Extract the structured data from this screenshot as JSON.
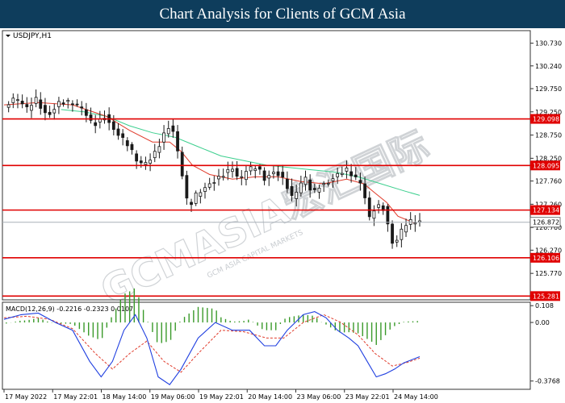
{
  "header": {
    "title": "Chart Analysis for Clients of GCM Asia"
  },
  "symbol_label": "USDJPY,H1",
  "watermark": {
    "main": "GCMASIA宏汇国际",
    "sub": "GCM ASIA CAPITAL MARKETS"
  },
  "colors": {
    "title_bg": "#0e3d5c",
    "support_resistance": "#e00000",
    "current_price_line": "#a8b0b8",
    "ma_fast": "#e03a2a",
    "ma_slow": "#3ccf8e",
    "macd_line": "#1f3fe0",
    "macd_signal": "#e03a2a",
    "macd_histogram": "#3a9a2a",
    "candle": "#1a1a1a"
  },
  "chart_data": [
    {
      "type": "candlestick",
      "symbol": "USDJPY",
      "timeframe": "H1",
      "ylim": [
        125.2,
        131.0
      ],
      "y_ticks": [
        "130.730",
        "130.240",
        "129.750",
        "129.250",
        "128.750",
        "128.250",
        "127.760",
        "127.260",
        "126.760",
        "126.270",
        "125.770"
      ],
      "x_ticks": [
        "17 May 2022",
        "17 May 22:01",
        "18 May 14:00",
        "19 May 06:00",
        "19 May 22:01",
        "20 May 14:00",
        "23 May 06:00",
        "23 May 22:01",
        "24 May 14:00"
      ],
      "levels": [
        {
          "label": "129.098",
          "value": 129.098
        },
        {
          "label": "128.095",
          "value": 128.095
        },
        {
          "label": "127.134",
          "value": 127.134
        },
        {
          "label": "126.106",
          "value": 126.106
        },
        {
          "label": "125.281",
          "value": 125.281
        }
      ],
      "current_price": {
        "label": "126.872",
        "value": 126.872
      },
      "close_path": [
        [
          0,
          129.35
        ],
        [
          10,
          129.5
        ],
        [
          20,
          129.3
        ],
        [
          28,
          129.55
        ],
        [
          38,
          129.2
        ],
        [
          48,
          129.45
        ],
        [
          58,
          129.4
        ],
        [
          68,
          129.3
        ],
        [
          78,
          129.0
        ],
        [
          88,
          129.2
        ],
        [
          98,
          128.8
        ],
        [
          108,
          128.5
        ],
        [
          118,
          128.1
        ],
        [
          126,
          128.2
        ],
        [
          134,
          128.5
        ],
        [
          140,
          128.8
        ],
        [
          146,
          129.0
        ],
        [
          150,
          128.6
        ],
        [
          155,
          128.0
        ],
        [
          158,
          127.5
        ],
        [
          162,
          127.1
        ],
        [
          166,
          127.4
        ],
        [
          172,
          127.55
        ],
        [
          180,
          127.75
        ],
        [
          190,
          127.9
        ],
        [
          200,
          128.0
        ],
        [
          206,
          127.7
        ],
        [
          212,
          127.95
        ],
        [
          222,
          128.1
        ],
        [
          228,
          127.85
        ],
        [
          235,
          128.0
        ],
        [
          242,
          127.9
        ],
        [
          248,
          127.6
        ],
        [
          253,
          127.3
        ],
        [
          258,
          127.6
        ],
        [
          264,
          127.8
        ],
        [
          270,
          127.5
        ],
        [
          276,
          127.7
        ],
        [
          282,
          127.75
        ],
        [
          292,
          127.9
        ],
        [
          300,
          127.95
        ],
        [
          306,
          127.8
        ],
        [
          312,
          127.7
        ],
        [
          316,
          127.4
        ],
        [
          320,
          127.0
        ],
        [
          326,
          127.3
        ],
        [
          333,
          127.2
        ],
        [
          338,
          126.6
        ],
        [
          341,
          126.35
        ],
        [
          345,
          126.5
        ],
        [
          350,
          126.75
        ],
        [
          357,
          126.85
        ],
        [
          364,
          126.87
        ]
      ],
      "ma_fast_path": [
        [
          0,
          129.4
        ],
        [
          30,
          129.45
        ],
        [
          60,
          129.4
        ],
        [
          90,
          129.15
        ],
        [
          110,
          128.85
        ],
        [
          130,
          128.6
        ],
        [
          145,
          128.6
        ],
        [
          155,
          128.4
        ],
        [
          165,
          128.1
        ],
        [
          180,
          127.9
        ],
        [
          200,
          127.8
        ],
        [
          220,
          127.85
        ],
        [
          240,
          127.85
        ],
        [
          260,
          127.75
        ],
        [
          280,
          127.7
        ],
        [
          300,
          127.8
        ],
        [
          315,
          127.7
        ],
        [
          325,
          127.5
        ],
        [
          335,
          127.3
        ],
        [
          345,
          127.0
        ],
        [
          360,
          126.85
        ]
      ],
      "ma_slow_path": [
        [
          50,
          129.3
        ],
        [
          70,
          129.25
        ],
        [
          90,
          129.15
        ],
        [
          110,
          128.95
        ],
        [
          130,
          128.8
        ],
        [
          150,
          128.7
        ],
        [
          170,
          128.5
        ],
        [
          190,
          128.3
        ],
        [
          210,
          128.2
        ],
        [
          230,
          128.1
        ],
        [
          250,
          128.05
        ],
        [
          270,
          128.0
        ],
        [
          290,
          127.95
        ],
        [
          310,
          127.85
        ],
        [
          330,
          127.7
        ],
        [
          350,
          127.55
        ],
        [
          364,
          127.45
        ]
      ]
    },
    {
      "type": "macd",
      "title": "MACD(12,26,9) -0.2216 -0.2323 0.0107",
      "params": [
        12,
        26,
        9
      ],
      "values": {
        "macd": -0.2216,
        "signal": -0.2323,
        "histogram": 0.0107
      },
      "ylim": [
        -0.43,
        0.13
      ],
      "y_ticks": [
        "0.108",
        "0.00",
        "-0.3768"
      ],
      "macd_path": [
        [
          0,
          0.02
        ],
        [
          15,
          0.05
        ],
        [
          30,
          0.06
        ],
        [
          45,
          0.0
        ],
        [
          60,
          -0.05
        ],
        [
          75,
          -0.25
        ],
        [
          85,
          -0.35
        ],
        [
          95,
          -0.25
        ],
        [
          105,
          -0.05
        ],
        [
          115,
          0.05
        ],
        [
          125,
          -0.1
        ],
        [
          135,
          -0.35
        ],
        [
          145,
          -0.4
        ],
        [
          155,
          -0.3
        ],
        [
          170,
          -0.1
        ],
        [
          185,
          0.0
        ],
        [
          200,
          -0.05
        ],
        [
          215,
          -0.05
        ],
        [
          228,
          -0.15
        ],
        [
          238,
          -0.15
        ],
        [
          248,
          -0.05
        ],
        [
          262,
          0.05
        ],
        [
          272,
          0.07
        ],
        [
          282,
          0.03
        ],
        [
          292,
          -0.05
        ],
        [
          302,
          -0.1
        ],
        [
          310,
          -0.15
        ],
        [
          318,
          -0.25
        ],
        [
          326,
          -0.35
        ],
        [
          334,
          -0.33
        ],
        [
          342,
          -0.3
        ],
        [
          350,
          -0.26
        ],
        [
          364,
          -0.22
        ]
      ],
      "signal_path": [
        [
          0,
          0.03
        ],
        [
          20,
          0.04
        ],
        [
          40,
          0.02
        ],
        [
          60,
          -0.04
        ],
        [
          80,
          -0.2
        ],
        [
          95,
          -0.3
        ],
        [
          110,
          -0.2
        ],
        [
          125,
          -0.12
        ],
        [
          140,
          -0.25
        ],
        [
          155,
          -0.32
        ],
        [
          170,
          -0.2
        ],
        [
          190,
          -0.05
        ],
        [
          210,
          -0.06
        ],
        [
          230,
          -0.1
        ],
        [
          245,
          -0.1
        ],
        [
          262,
          0.0
        ],
        [
          280,
          0.05
        ],
        [
          295,
          0.0
        ],
        [
          310,
          -0.08
        ],
        [
          325,
          -0.2
        ],
        [
          340,
          -0.28
        ],
        [
          352,
          -0.26
        ],
        [
          364,
          -0.23
        ]
      ]
    }
  ]
}
